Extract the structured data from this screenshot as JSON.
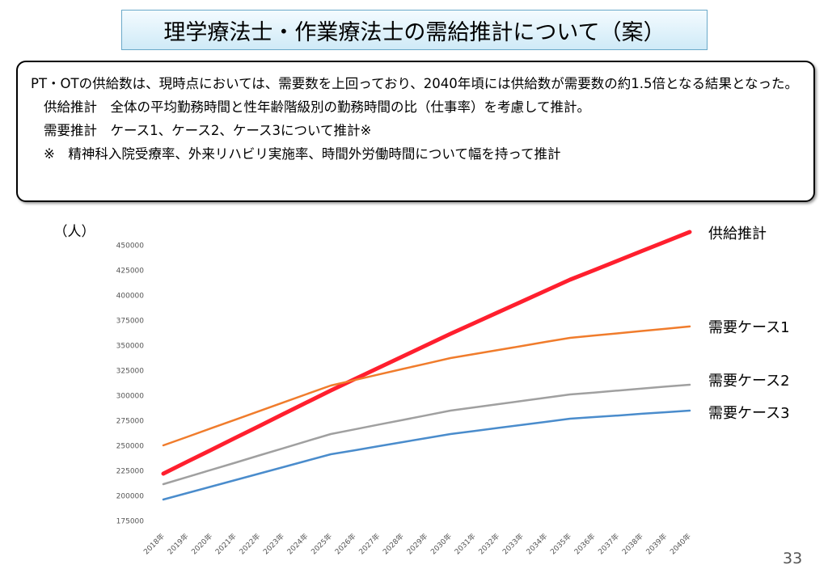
{
  "title": "理学療法士・作業療法士の需給推計について（案）",
  "notes": [
    "PT・OTの供給数は、現時点においては、需要数を上回っており、2040年頃には供給数が需要数の約1.5倍となる結果となった。",
    "供給推計　全体の平均勤務時間と性年齢階級別の勤務時間の比（仕事率）を考慮して推計。",
    "需要推計　ケース1、ケース2、ケース3について推計※",
    "※　精神科入院受療率、外来リハビリ実施率、時間外労働時間について幅を持って推計"
  ],
  "page_number": "33",
  "chart_data": {
    "type": "line",
    "y_label": "（人）",
    "categories": [
      "2018年",
      "2019年",
      "2020年",
      "2021年",
      "2022年",
      "2023年",
      "2024年",
      "2025年",
      "2026年",
      "2027年",
      "2028年",
      "2029年",
      "2030年",
      "2031年",
      "2032年",
      "2033年",
      "2034年",
      "2035年",
      "2036年",
      "2037年",
      "2038年",
      "2039年",
      "2040年"
    ],
    "ylim": [
      175000,
      475000
    ],
    "yticks": [
      175000,
      200000,
      225000,
      250000,
      275000,
      300000,
      325000,
      350000,
      375000,
      400000,
      425000,
      450000
    ],
    "grid": false,
    "series": [
      {
        "name": "供給推計",
        "color": "#ff1f2e",
        "values": [
          222600,
          234500,
          246300,
          258200,
          270000,
          281900,
          293700,
          305600,
          316900,
          328200,
          339500,
          350800,
          362100,
          372900,
          383700,
          394500,
          405300,
          416100,
          425600,
          435200,
          444700,
          454200,
          463700
        ]
      },
      {
        "name": "需要ケース1",
        "color": "#f07c2c",
        "values": [
          250800,
          259300,
          267900,
          276400,
          284900,
          293500,
          302000,
          310500,
          316000,
          321500,
          327000,
          332400,
          337900,
          341900,
          346000,
          350000,
          354100,
          358100,
          360400,
          362600,
          364900,
          367100,
          369400
        ]
      },
      {
        "name": "需要ケース2",
        "color": "#a0a0a0",
        "values": [
          212100,
          219200,
          226400,
          233500,
          240700,
          247800,
          255000,
          262100,
          266800,
          271500,
          276100,
          280800,
          285500,
          288700,
          291900,
          295200,
          298400,
          301600,
          303500,
          305500,
          307400,
          309400,
          311300
        ]
      },
      {
        "name": "需要ケース3",
        "color": "#4a8ccc",
        "values": [
          196800,
          203200,
          209700,
          216100,
          222600,
          229000,
          235500,
          241900,
          245900,
          250000,
          254000,
          258100,
          262100,
          265200,
          268200,
          271300,
          274300,
          277400,
          279000,
          280600,
          282300,
          283900,
          285500
        ]
      }
    ]
  }
}
